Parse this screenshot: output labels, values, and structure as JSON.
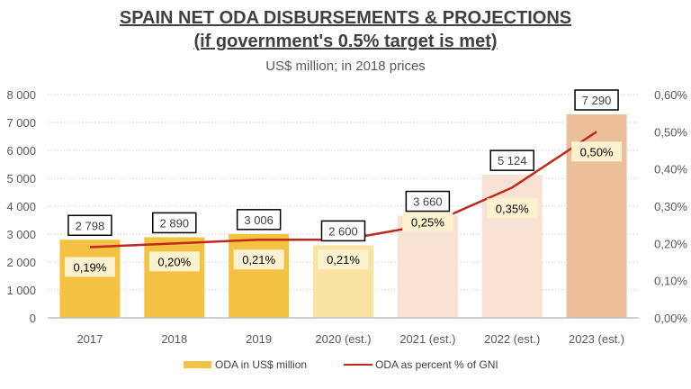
{
  "chart_data": {
    "type": "bar+line",
    "title": "SPAIN NET ODA DISBURSEMENTS & PROJECTIONS",
    "title_line2": "(if government's 0.5% target is met)",
    "subtitle": "US$ million; in 2018 prices",
    "categories": [
      "2017",
      "2018",
      "2019",
      "2020 (est.)",
      "2021 (est.)",
      "2022 (est.)",
      "2023 (est.)"
    ],
    "series": [
      {
        "name": "ODA in US$ million",
        "type": "bar",
        "axis": "left",
        "values": [
          2798,
          2890,
          3006,
          2600,
          3660,
          5124,
          7290
        ],
        "labels": [
          "2 798",
          "2 890",
          "3 006",
          "2 600",
          "3 660",
          "5 124",
          "7 290"
        ],
        "colors": [
          "#F4C242",
          "#F4C242",
          "#F4C242",
          "#F9E3A0",
          "#F7E2D4",
          "#F7E2D4",
          "#EDBE9A"
        ]
      },
      {
        "name": "ODA as percent % of GNI",
        "type": "line",
        "axis": "right",
        "color": "#C0281E",
        "values": [
          0.19,
          0.2,
          0.21,
          0.21,
          0.25,
          0.35,
          0.5
        ],
        "labels": [
          "0,19%",
          "0,20%",
          "0,21%",
          "0,21%",
          "0,25%",
          "0,35%",
          "0,50%"
        ]
      }
    ],
    "y_left": {
      "range": [
        0,
        8000
      ],
      "ticks": [
        "0",
        "1 000",
        "2 000",
        "3 000",
        "4 000",
        "5 000",
        "6 000",
        "7 000",
        "8 000"
      ]
    },
    "y_right": {
      "range": [
        0,
        0.6
      ],
      "ticks": [
        "0,00%",
        "0,10%",
        "0,20%",
        "0,30%",
        "0,40%",
        "0,50%",
        "0,60%"
      ]
    },
    "grid": true,
    "legend": "bottom",
    "legend_swatch_color": "#F4C242"
  }
}
